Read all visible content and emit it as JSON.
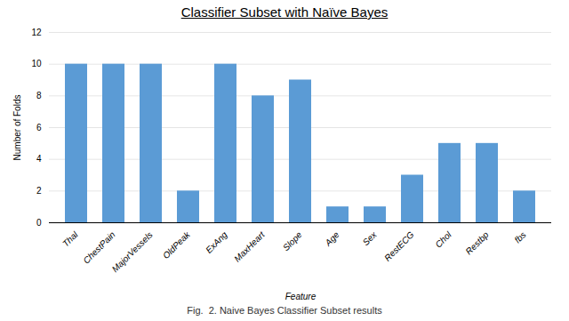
{
  "chart_data": {
    "type": "bar",
    "title": "Classifier Subset with Naïve Bayes",
    "xlabel": "Feature",
    "ylabel": "Number of Folds",
    "categories": [
      "Thal",
      "ChestPain",
      "MajorVessels",
      "OldPeak",
      "ExAng",
      "MaxHeart",
      "Slope",
      "Age",
      "Sex",
      "RestECG",
      "Chol",
      "Restbp",
      "fbs"
    ],
    "values": [
      10,
      10,
      10,
      2,
      10,
      8,
      9,
      1,
      1,
      3,
      5,
      5,
      2
    ],
    "color": "#5B9BD5",
    "ylim": [
      0,
      12
    ],
    "yticks": [
      0,
      2,
      4,
      6,
      8,
      10,
      12
    ],
    "grid": true,
    "caption": "Fig.  2. Naive Bayes Classifier Subset results"
  }
}
